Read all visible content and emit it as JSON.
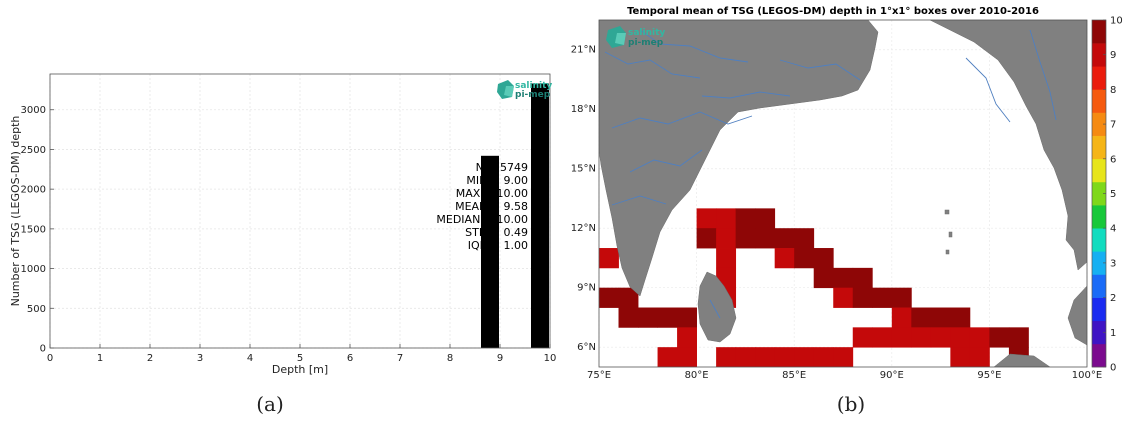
{
  "panel_a": {
    "caption": "(a)",
    "logo": {
      "line1": "salinity",
      "line2": "pi-mep"
    },
    "stats": [
      "N = 5749",
      "MIN = 9.00",
      "MAX = 10.00",
      "MEAN = 9.58",
      "MEDIAN = 10.00",
      "STD = 0.49",
      "IQR = 1.00"
    ]
  },
  "panel_b": {
    "caption": "(b)",
    "logo": {
      "line1": "salinity",
      "line2": "pi-mep"
    },
    "colorbar_ticks": [
      "0",
      "1",
      "2",
      "3",
      "4",
      "5",
      "6",
      "7",
      "8",
      "9",
      "10"
    ],
    "land_color": "#808080",
    "river_color": "#4f7fc0"
  },
  "chart_data": [
    {
      "type": "bar",
      "title": "",
      "xlabel": "Depth [m]",
      "ylabel": "Number of TSG (LEGOS-DM) depth",
      "xlim": [
        0,
        10
      ],
      "ylim": [
        0,
        3450
      ],
      "x_ticks": [
        "0",
        "1",
        "2",
        "3",
        "4",
        "5",
        "6",
        "7",
        "8",
        "9",
        "10"
      ],
      "y_ticks": [
        "0",
        "500",
        "1000",
        "1500",
        "2000",
        "2500",
        "3000"
      ],
      "bar_color": "#000000",
      "bars": [
        {
          "x": 8.8,
          "value": 2420
        },
        {
          "x": 9.8,
          "value": 3330
        }
      ],
      "grid": true
    },
    {
      "type": "heatmap",
      "title": "Temporal mean of TSG (LEGOS-DM) depth in 1°x1° boxes over 2010-2016",
      "lon_range": [
        75,
        100
      ],
      "lat_range": [
        5,
        22.5
      ],
      "x_ticks": [
        "75°E",
        "80°E",
        "85°E",
        "90°E",
        "95°E",
        "100°E"
      ],
      "y_ticks": [
        "6°N",
        "9°N",
        "12°N",
        "15°N",
        "18°N",
        "21°N"
      ],
      "colorbar_range": [
        0,
        10
      ],
      "colormap": [
        "#7b0a8e",
        "#3f14c4",
        "#1a2bf0",
        "#1a6bf7",
        "#16b0f2",
        "#12dcbf",
        "#18c83a",
        "#7fd81a",
        "#e7e51b",
        "#f5b517",
        "#f58a12",
        "#f55a0f",
        "#ea1b0c",
        "#c4090a",
        "#8e0606"
      ],
      "cells": [
        {
          "lon": 80.5,
          "lat": 12.5,
          "value": 9
        },
        {
          "lon": 81.5,
          "lat": 12.5,
          "value": 9
        },
        {
          "lon": 82.5,
          "lat": 12.5,
          "value": 10
        },
        {
          "lon": 83.5,
          "lat": 12.5,
          "value": 10
        },
        {
          "lon": 80.5,
          "lat": 11.5,
          "value": 10
        },
        {
          "lon": 81.5,
          "lat": 11.5,
          "value": 9
        },
        {
          "lon": 82.5,
          "lat": 11.5,
          "value": 10
        },
        {
          "lon": 83.5,
          "lat": 11.5,
          "value": 10
        },
        {
          "lon": 84.5,
          "lat": 11.5,
          "value": 10
        },
        {
          "lon": 85.5,
          "lat": 11.5,
          "value": 10
        },
        {
          "lon": 75.5,
          "lat": 10.5,
          "value": 9
        },
        {
          "lon": 81.5,
          "lat": 10.5,
          "value": 9
        },
        {
          "lon": 84.5,
          "lat": 10.5,
          "value": 9
        },
        {
          "lon": 85.5,
          "lat": 10.5,
          "value": 10
        },
        {
          "lon": 86.5,
          "lat": 10.5,
          "value": 10
        },
        {
          "lon": 81.5,
          "lat": 9.5,
          "value": 9
        },
        {
          "lon": 86.5,
          "lat": 9.5,
          "value": 10
        },
        {
          "lon": 87.5,
          "lat": 9.5,
          "value": 10
        },
        {
          "lon": 88.5,
          "lat": 9.5,
          "value": 10
        },
        {
          "lon": 75.5,
          "lat": 8.5,
          "value": 10
        },
        {
          "lon": 76.5,
          "lat": 8.5,
          "value": 10
        },
        {
          "lon": 81.5,
          "lat": 8.5,
          "value": 9
        },
        {
          "lon": 87.5,
          "lat": 8.5,
          "value": 9
        },
        {
          "lon": 88.5,
          "lat": 8.5,
          "value": 10
        },
        {
          "lon": 89.5,
          "lat": 8.5,
          "value": 10
        },
        {
          "lon": 90.5,
          "lat": 8.5,
          "value": 10
        },
        {
          "lon": 76.5,
          "lat": 7.5,
          "value": 10
        },
        {
          "lon": 77.5,
          "lat": 7.5,
          "value": 10
        },
        {
          "lon": 78.5,
          "lat": 7.5,
          "value": 10
        },
        {
          "lon": 79.5,
          "lat": 7.5,
          "value": 10
        },
        {
          "lon": 90.5,
          "lat": 7.5,
          "value": 9
        },
        {
          "lon": 91.5,
          "lat": 7.5,
          "value": 10
        },
        {
          "lon": 92.5,
          "lat": 7.5,
          "value": 10
        },
        {
          "lon": 93.5,
          "lat": 7.5,
          "value": 10
        },
        {
          "lon": 79.5,
          "lat": 6.5,
          "value": 9
        },
        {
          "lon": 88.5,
          "lat": 6.5,
          "value": 9
        },
        {
          "lon": 89.5,
          "lat": 6.5,
          "value": 9
        },
        {
          "lon": 90.5,
          "lat": 6.5,
          "value": 9
        },
        {
          "lon": 91.5,
          "lat": 6.5,
          "value": 9
        },
        {
          "lon": 92.5,
          "lat": 6.5,
          "value": 9
        },
        {
          "lon": 93.5,
          "lat": 6.5,
          "value": 9
        },
        {
          "lon": 94.5,
          "lat": 6.5,
          "value": 9
        },
        {
          "lon": 95.5,
          "lat": 6.5,
          "value": 10
        },
        {
          "lon": 96.5,
          "lat": 6.5,
          "value": 10
        },
        {
          "lon": 78.5,
          "lat": 5.5,
          "value": 9
        },
        {
          "lon": 79.5,
          "lat": 5.5,
          "value": 9
        },
        {
          "lon": 81.5,
          "lat": 5.5,
          "value": 9
        },
        {
          "lon": 82.5,
          "lat": 5.5,
          "value": 9
        },
        {
          "lon": 83.5,
          "lat": 5.5,
          "value": 9
        },
        {
          "lon": 84.5,
          "lat": 5.5,
          "value": 9
        },
        {
          "lon": 85.5,
          "lat": 5.5,
          "value": 9
        },
        {
          "lon": 86.5,
          "lat": 5.5,
          "value": 9
        },
        {
          "lon": 87.5,
          "lat": 5.5,
          "value": 9
        },
        {
          "lon": 93.5,
          "lat": 5.5,
          "value": 9
        },
        {
          "lon": 94.5,
          "lat": 5.5,
          "value": 9
        },
        {
          "lon": 96.5,
          "lat": 5.5,
          "value": 10
        }
      ]
    }
  ]
}
